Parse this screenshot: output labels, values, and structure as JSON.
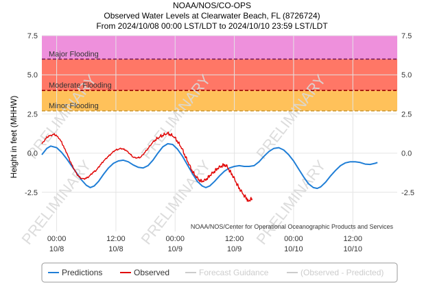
{
  "chart_data": {
    "type": "line",
    "title": "NOAA/NOS/CO-OPS",
    "subtitle": "Observed Water Levels at Clearwater Beach, FL (8726724)",
    "date_range": "From 2024/10/08 00:00 LST/LDT to 2024/10/10 23:59 LST/LDT",
    "ylabel": "Height in feet (MHHW)",
    "xlabel": "",
    "ylim": [
      -5,
      7.5
    ],
    "y_ticks": [
      {
        "value": 7.5,
        "label": "7.5"
      },
      {
        "value": 5,
        "label": "5.0"
      },
      {
        "value": 2.5,
        "label": "2.5"
      },
      {
        "value": 0,
        "label": "0.0"
      },
      {
        "value": -2.5,
        "label": "-2.5"
      }
    ],
    "x_range_hours": [
      -3,
      69
    ],
    "x_ticks": [
      {
        "hour": 0,
        "time": "00:00",
        "date": "10/8"
      },
      {
        "hour": 12,
        "time": "12:00",
        "date": "10/8"
      },
      {
        "hour": 24,
        "time": "00:00",
        "date": "10/9"
      },
      {
        "hour": 36,
        "time": "12:00",
        "date": "10/9"
      },
      {
        "hour": 48,
        "time": "00:00",
        "date": "10/10"
      },
      {
        "hour": 60,
        "time": "12:00",
        "date": "10/10"
      }
    ],
    "flood_bands": [
      {
        "label": "Major Flooding",
        "from": 6.0,
        "to": 7.5,
        "color": "#ee90dc",
        "line_color": "#7a1d5c"
      },
      {
        "label": "Moderate Flooding",
        "from": 4.0,
        "to": 6.0,
        "color": "#ff7766",
        "line_color": "#990000"
      },
      {
        "label": "Minor Flooding",
        "from": 2.7,
        "to": 4.0,
        "color": "#ffc15a",
        "line_color": "#d09a30"
      }
    ],
    "grid": true,
    "legend_position": "bottom",
    "series": [
      {
        "name": "Predictions",
        "color": "#1f7ed6",
        "points": [
          [
            -3,
            -0.1
          ],
          [
            -2,
            0.3
          ],
          [
            -1.2,
            0.45
          ],
          [
            0,
            0.35
          ],
          [
            1,
            0.05
          ],
          [
            2,
            -0.35
          ],
          [
            3,
            -0.8
          ],
          [
            4,
            -1.25
          ],
          [
            5,
            -1.7
          ],
          [
            6,
            -2.05
          ],
          [
            6.8,
            -2.2
          ],
          [
            7.6,
            -2.1
          ],
          [
            8.5,
            -1.8
          ],
          [
            9.5,
            -1.35
          ],
          [
            10.5,
            -0.95
          ],
          [
            11.5,
            -0.65
          ],
          [
            12.5,
            -0.5
          ],
          [
            13.5,
            -0.45
          ],
          [
            14.5,
            -0.55
          ],
          [
            15.5,
            -0.75
          ],
          [
            16.5,
            -0.9
          ],
          [
            17.5,
            -0.95
          ],
          [
            18.5,
            -0.8
          ],
          [
            19.5,
            -0.45
          ],
          [
            20.5,
            0.0
          ],
          [
            21.5,
            0.4
          ],
          [
            22.5,
            0.6
          ],
          [
            23.5,
            0.55
          ],
          [
            24.5,
            0.25
          ],
          [
            25.5,
            -0.2
          ],
          [
            26.5,
            -0.75
          ],
          [
            27.5,
            -1.3
          ],
          [
            28.5,
            -1.8
          ],
          [
            29.5,
            -2.1
          ],
          [
            30.2,
            -2.2
          ],
          [
            31,
            -2.1
          ],
          [
            32,
            -1.8
          ],
          [
            33,
            -1.45
          ],
          [
            34,
            -1.15
          ],
          [
            35,
            -0.95
          ],
          [
            36,
            -0.85
          ],
          [
            37,
            -0.8
          ],
          [
            38,
            -0.85
          ],
          [
            39,
            -0.85
          ],
          [
            40,
            -0.8
          ],
          [
            41,
            -0.55
          ],
          [
            42,
            -0.2
          ],
          [
            43,
            0.1
          ],
          [
            44,
            0.3
          ],
          [
            45,
            0.35
          ],
          [
            46,
            0.2
          ],
          [
            47,
            -0.1
          ],
          [
            48,
            -0.5
          ],
          [
            49,
            -1.0
          ],
          [
            50,
            -1.5
          ],
          [
            51,
            -1.95
          ],
          [
            52,
            -2.2
          ],
          [
            52.8,
            -2.25
          ],
          [
            53.5,
            -2.15
          ],
          [
            54.5,
            -1.85
          ],
          [
            55.5,
            -1.45
          ],
          [
            56.5,
            -1.1
          ],
          [
            57.5,
            -0.8
          ],
          [
            58.5,
            -0.62
          ],
          [
            59.5,
            -0.55
          ],
          [
            60.5,
            -0.55
          ],
          [
            61.5,
            -0.6
          ],
          [
            62.5,
            -0.7
          ],
          [
            63.5,
            -0.72
          ],
          [
            64.5,
            -0.65
          ],
          [
            65,
            -0.6
          ]
        ]
      },
      {
        "name": "Observed",
        "color": "#e00000",
        "points": [
          [
            -3,
            0.6
          ],
          [
            -2.5,
            0.8
          ],
          [
            -2,
            1.0
          ],
          [
            -1.5,
            1.1
          ],
          [
            -1,
            1.15
          ],
          [
            -0.5,
            1.2
          ],
          [
            0,
            1.1
          ],
          [
            0.5,
            0.95
          ],
          [
            1,
            0.7
          ],
          [
            1.5,
            0.35
          ],
          [
            2,
            0.05
          ],
          [
            2.5,
            -0.35
          ],
          [
            3,
            -0.7
          ],
          [
            3.5,
            -1.0
          ],
          [
            4,
            -1.3
          ],
          [
            4.5,
            -1.5
          ],
          [
            5,
            -1.6
          ],
          [
            5.5,
            -1.65
          ],
          [
            6,
            -1.6
          ],
          [
            6.5,
            -1.5
          ],
          [
            7,
            -1.35
          ],
          [
            7.5,
            -1.2
          ],
          [
            8,
            -1.1
          ],
          [
            8.5,
            -0.9
          ],
          [
            9,
            -0.7
          ],
          [
            9.5,
            -0.5
          ],
          [
            10,
            -0.35
          ],
          [
            10.5,
            -0.2
          ],
          [
            11,
            -0.05
          ],
          [
            11.5,
            0.1
          ],
          [
            12,
            0.2
          ],
          [
            12.5,
            0.25
          ],
          [
            13,
            0.3
          ],
          [
            13.5,
            0.25
          ],
          [
            14,
            0.2
          ],
          [
            14.5,
            0.05
          ],
          [
            15,
            -0.1
          ],
          [
            15.5,
            -0.25
          ],
          [
            16,
            -0.3
          ],
          [
            16.5,
            -0.3
          ],
          [
            17,
            -0.25
          ],
          [
            17.5,
            -0.1
          ],
          [
            18,
            0.1
          ],
          [
            18.5,
            0.3
          ],
          [
            19,
            0.5
          ],
          [
            19.5,
            0.7
          ],
          [
            20,
            0.85
          ],
          [
            20.5,
            0.95
          ],
          [
            21,
            1.05
          ],
          [
            21.5,
            1.15
          ],
          [
            22,
            1.2
          ],
          [
            22.5,
            1.25
          ],
          [
            23,
            1.2
          ],
          [
            23.5,
            1.1
          ],
          [
            24,
            0.95
          ],
          [
            24.5,
            0.75
          ],
          [
            25,
            0.5
          ],
          [
            25.5,
            0.2
          ],
          [
            26,
            -0.15
          ],
          [
            26.5,
            -0.5
          ],
          [
            27,
            -0.85
          ],
          [
            27.5,
            -1.15
          ],
          [
            28,
            -1.4
          ],
          [
            28.5,
            -1.6
          ],
          [
            29,
            -1.75
          ],
          [
            29.5,
            -1.8
          ],
          [
            30,
            -1.75
          ],
          [
            30.5,
            -1.6
          ],
          [
            31,
            -1.45
          ],
          [
            31.5,
            -1.3
          ],
          [
            32,
            -1.15
          ],
          [
            32.5,
            -1.0
          ],
          [
            33,
            -0.9
          ],
          [
            33.5,
            -0.8
          ],
          [
            34,
            -0.75
          ],
          [
            34.5,
            -0.85
          ],
          [
            35,
            -1.1
          ],
          [
            35.5,
            -1.35
          ],
          [
            36,
            -1.65
          ],
          [
            36.5,
            -1.95
          ],
          [
            37,
            -2.25
          ],
          [
            37.5,
            -2.5
          ],
          [
            38,
            -2.7
          ],
          [
            38.5,
            -2.9
          ],
          [
            38.8,
            -3.1
          ],
          [
            39.2,
            -2.95
          ],
          [
            39.6,
            -2.9
          ]
        ]
      }
    ],
    "legend_entries": [
      {
        "label": "Predictions",
        "color": "#1f7ed6",
        "active": true
      },
      {
        "label": "Observed",
        "color": "#e00000",
        "active": true
      },
      {
        "label": "Forecast Guidance",
        "color": "#cccccc",
        "active": false
      },
      {
        "label": "(Observed - Predicted)",
        "color": "#cccccc",
        "active": false
      }
    ],
    "credits": "NOAA/NOS/Center for Operational Oceanographic Products and Services",
    "watermark": "PRELIMINARY"
  }
}
